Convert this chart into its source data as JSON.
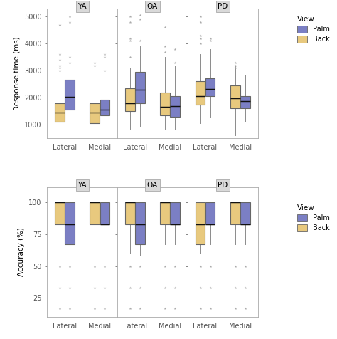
{
  "panel_labels": [
    "YA",
    "OA",
    "PD"
  ],
  "orientation_labels": [
    "Lateral",
    "Medial"
  ],
  "view_labels": [
    "Palm",
    "Back"
  ],
  "palm_color": "#7b7fc4",
  "back_color": "#e8c97e",
  "strip_bg": "#d9d9d9",
  "strip_border": "#aaaaaa",
  "panel_border": "#aaaaaa",
  "whisker_color": "#888888",
  "median_color": "#111111",
  "outlier_color": "#aaaaaa",
  "box_edge_color": "#666666",
  "rt_ylim": [
    500,
    5300
  ],
  "rt_yticks": [
    1000,
    2000,
    3000,
    4000,
    5000
  ],
  "rt_ylabel": "Response time (ms)",
  "acc_ylim": [
    10,
    112
  ],
  "acc_yticks": [
    25,
    50,
    75,
    100
  ],
  "acc_ylabel": "Accuracy (%)",
  "rt_data": {
    "YA": {
      "Lateral": {
        "Back": {
          "q1": 1100,
          "med": 1450,
          "q3": 1800,
          "whisk_lo": 680,
          "whisk_hi": 2800,
          "outliers": [
            3000,
            3100,
            3200,
            3400,
            3600,
            4700,
            4700
          ]
        },
        "Palm": {
          "q1": 1550,
          "med": 2020,
          "q3": 2650,
          "whisk_lo": 800,
          "whisk_hi": 3050,
          "outliers": [
            3300,
            3500,
            4800,
            5000
          ]
        }
      },
      "Medial": {
        "Back": {
          "q1": 1050,
          "med": 1450,
          "q3": 1780,
          "whisk_lo": 780,
          "whisk_hi": 2850,
          "outliers": [
            3200,
            3300
          ]
        },
        "Palm": {
          "q1": 1330,
          "med": 1550,
          "q3": 1920,
          "whisk_lo": 900,
          "whisk_hi": 2800,
          "outliers": [
            3000,
            3500,
            3600
          ]
        }
      }
    },
    "OA": {
      "Lateral": {
        "Back": {
          "q1": 1500,
          "med": 1800,
          "q3": 2350,
          "whisk_lo": 850,
          "whisk_hi": 3100,
          "outliers": [
            3500,
            4100,
            4200,
            4800,
            5000
          ]
        },
        "Palm": {
          "q1": 1800,
          "med": 2280,
          "q3": 2950,
          "whisk_lo": 950,
          "whisk_hi": 3900,
          "outliers": [
            4100,
            4900,
            5050
          ]
        }
      },
      "Medial": {
        "Back": {
          "q1": 1350,
          "med": 1650,
          "q3": 2180,
          "whisk_lo": 850,
          "whisk_hi": 3500,
          "outliers": [
            3700,
            3900,
            4600
          ]
        },
        "Palm": {
          "q1": 1300,
          "med": 1680,
          "q3": 2050,
          "whisk_lo": 820,
          "whisk_hi": 3200,
          "outliers": [
            3300,
            3800
          ]
        }
      }
    },
    "PD": {
      "Lateral": {
        "Back": {
          "q1": 1750,
          "med": 2050,
          "q3": 2600,
          "whisk_lo": 1050,
          "whisk_hi": 3600,
          "outliers": [
            4000,
            4200,
            4300,
            4800,
            5000
          ]
        },
        "Palm": {
          "q1": 2050,
          "med": 2320,
          "q3": 2720,
          "whisk_lo": 1300,
          "whisk_hi": 3800,
          "outliers": [
            4100,
            4200
          ]
        }
      },
      "Medial": {
        "Back": {
          "q1": 1600,
          "med": 1980,
          "q3": 2450,
          "whisk_lo": 600,
          "whisk_hi": 3200,
          "outliers": [
            3100,
            3200,
            3300
          ]
        },
        "Palm": {
          "q1": 1600,
          "med": 1870,
          "q3": 2050,
          "whisk_lo": 1100,
          "whisk_hi": 2850,
          "outliers": []
        }
      }
    }
  },
  "acc_data": {
    "YA": {
      "Lateral": {
        "Back": {
          "q1": 83,
          "med": 100,
          "q3": 100,
          "whisk_lo": 60,
          "whisk_hi": 100,
          "outliers": [
            50,
            33,
            17
          ]
        },
        "Palm": {
          "q1": 67,
          "med": 83,
          "q3": 100,
          "whisk_lo": 58,
          "whisk_hi": 100,
          "outliers": [
            50,
            33,
            17
          ]
        }
      },
      "Medial": {
        "Back": {
          "q1": 83,
          "med": 100,
          "q3": 100,
          "whisk_lo": 67,
          "whisk_hi": 100,
          "outliers": [
            50,
            33,
            17
          ]
        },
        "Palm": {
          "q1": 83,
          "med": 83,
          "q3": 100,
          "whisk_lo": 67,
          "whisk_hi": 100,
          "outliers": [
            50,
            33,
            17
          ]
        }
      }
    },
    "OA": {
      "Lateral": {
        "Back": {
          "q1": 83,
          "med": 100,
          "q3": 100,
          "whisk_lo": 60,
          "whisk_hi": 100,
          "outliers": [
            50,
            33,
            17
          ]
        },
        "Palm": {
          "q1": 67,
          "med": 83,
          "q3": 100,
          "whisk_lo": 58,
          "whisk_hi": 100,
          "outliers": [
            50,
            33,
            17
          ]
        }
      },
      "Medial": {
        "Back": {
          "q1": 83,
          "med": 100,
          "q3": 100,
          "whisk_lo": 67,
          "whisk_hi": 100,
          "outliers": [
            50,
            33,
            17
          ]
        },
        "Palm": {
          "q1": 83,
          "med": 83,
          "q3": 100,
          "whisk_lo": 67,
          "whisk_hi": 100,
          "outliers": [
            50,
            33,
            17
          ]
        }
      }
    },
    "PD": {
      "Lateral": {
        "Back": {
          "q1": 67,
          "med": 83,
          "q3": 100,
          "whisk_lo": 60,
          "whisk_hi": 100,
          "outliers": [
            50,
            33,
            17
          ]
        },
        "Palm": {
          "q1": 83,
          "med": 83,
          "q3": 100,
          "whisk_lo": 67,
          "whisk_hi": 100,
          "outliers": [
            50,
            33,
            17
          ]
        }
      },
      "Medial": {
        "Back": {
          "q1": 83,
          "med": 100,
          "q3": 100,
          "whisk_lo": 67,
          "whisk_hi": 100,
          "outliers": [
            50,
            33,
            17
          ]
        },
        "Palm": {
          "q1": 83,
          "med": 83,
          "q3": 100,
          "whisk_lo": 67,
          "whisk_hi": 100,
          "outliers": [
            50,
            33,
            17
          ]
        }
      }
    }
  }
}
